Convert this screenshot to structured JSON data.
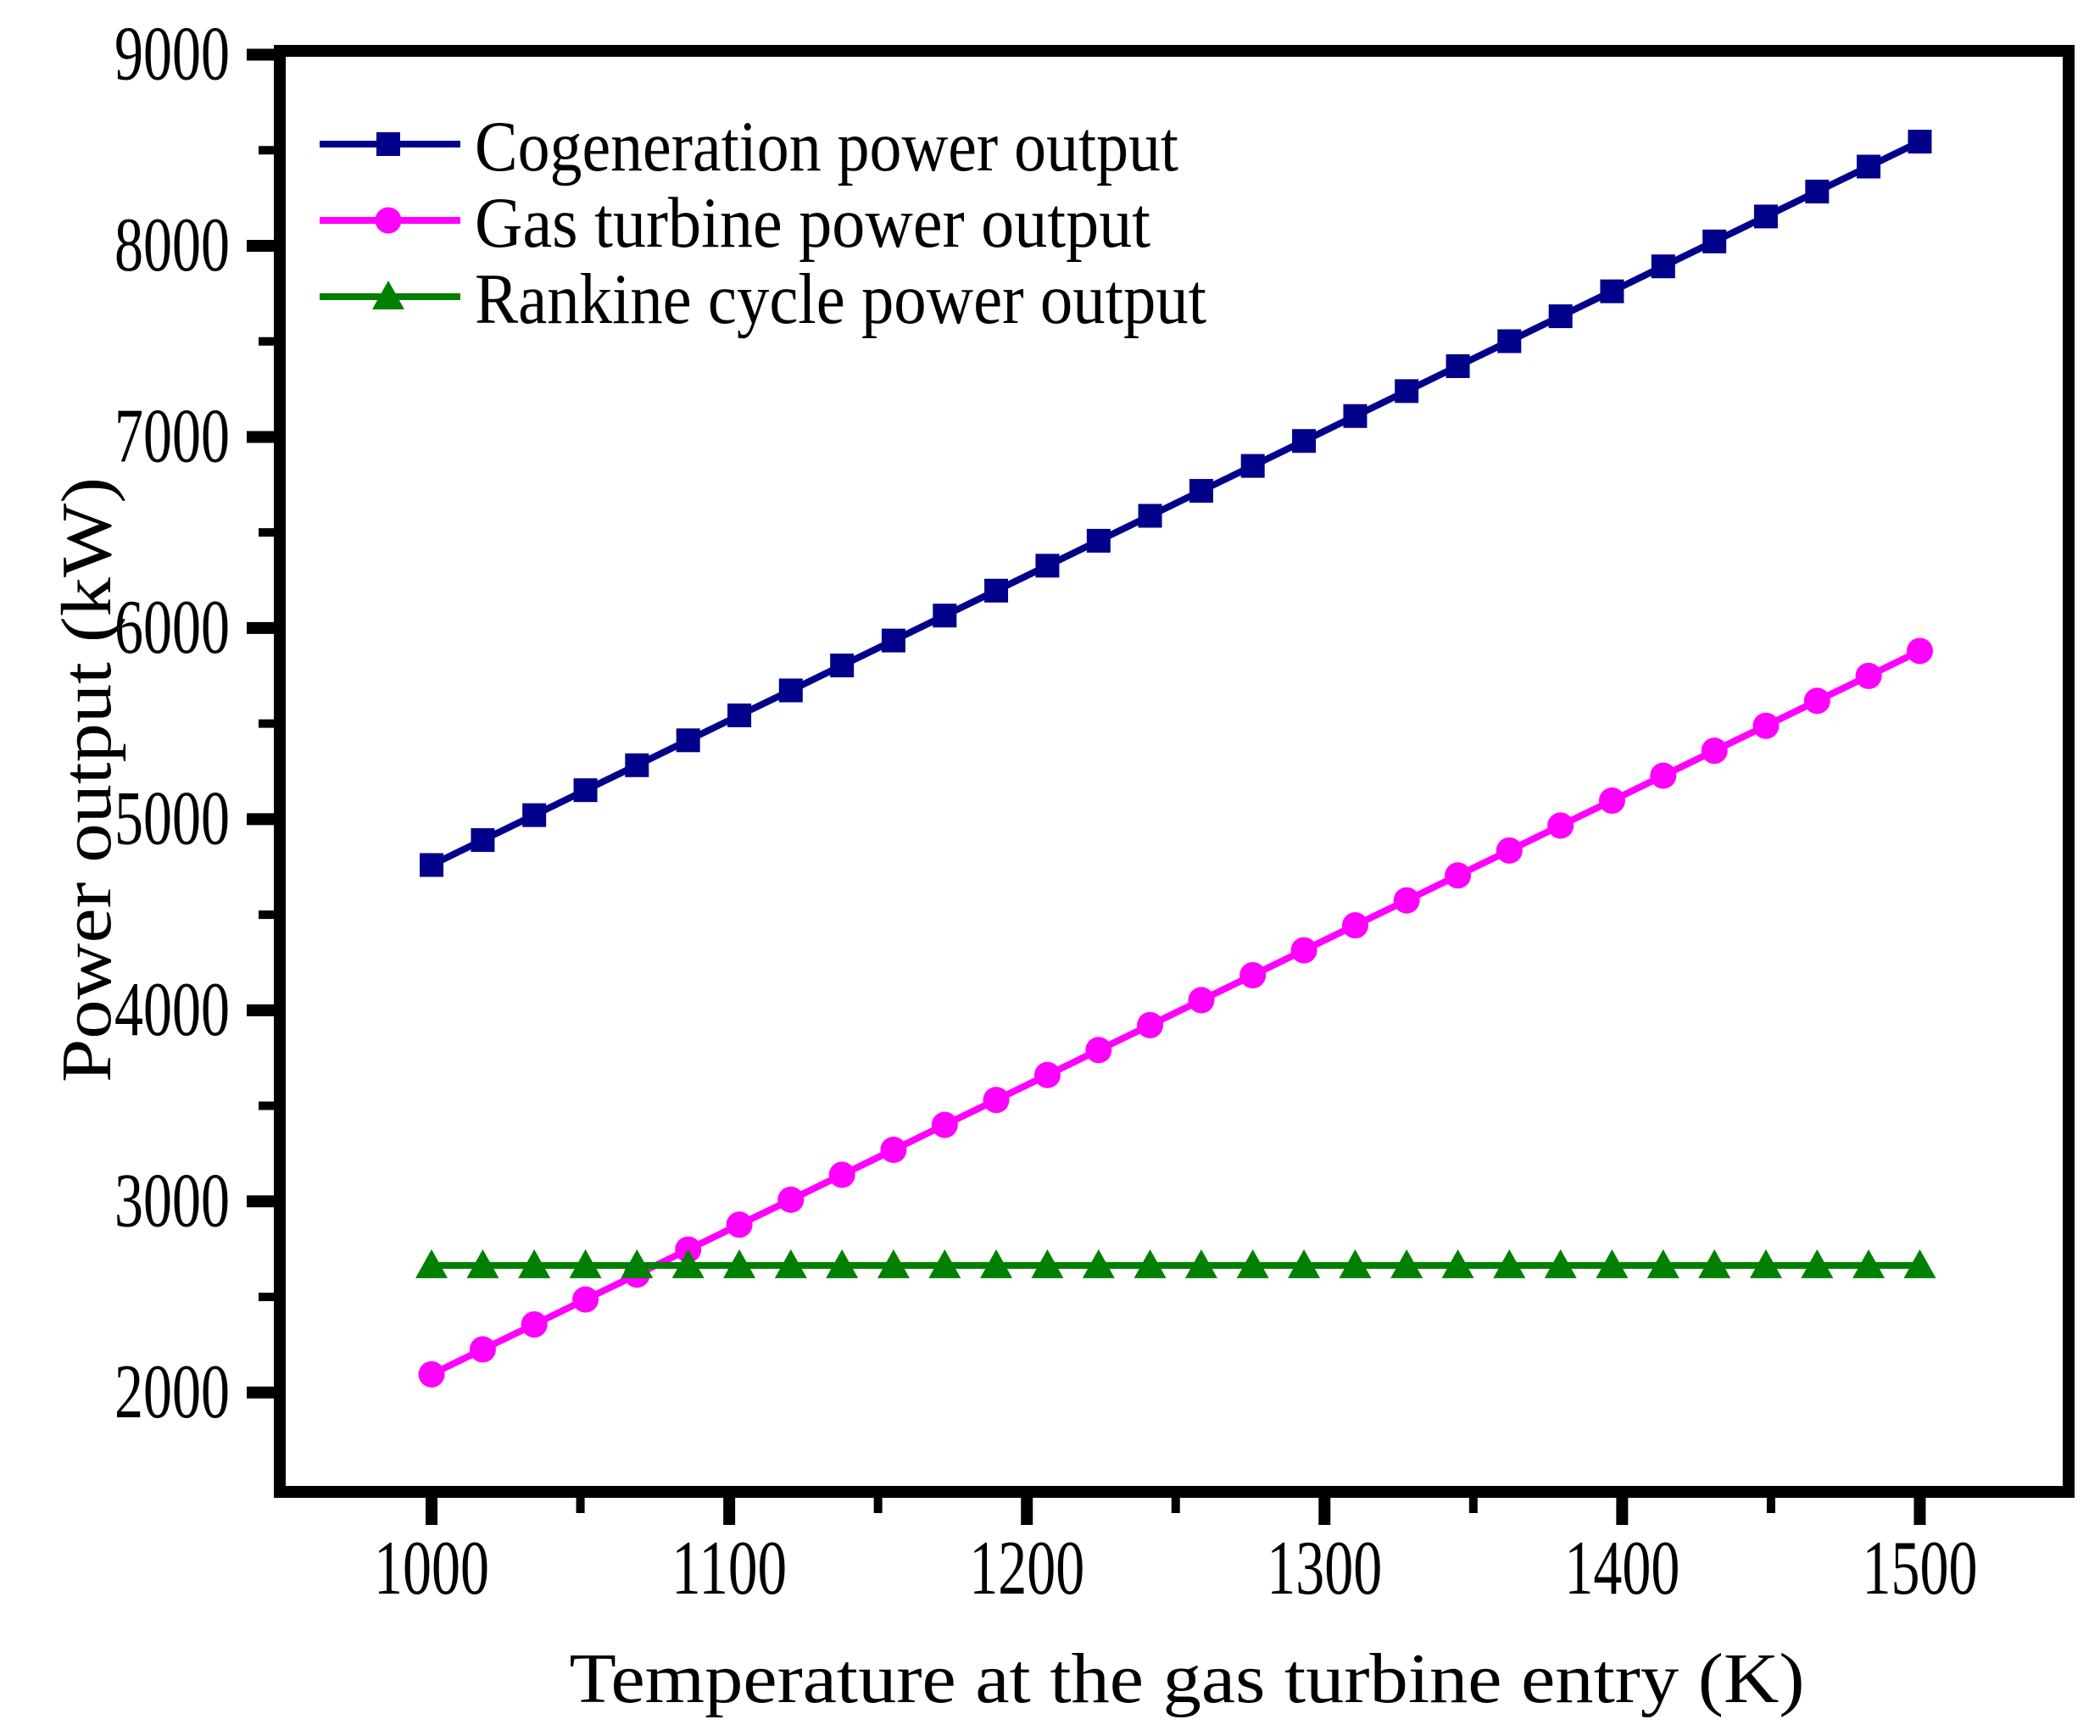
{
  "figure": {
    "background": "#ffffff",
    "axis_color": "#000000"
  },
  "chart_data": {
    "type": "line",
    "title": "",
    "xlabel": "Temperature at the gas turbine entry (K)",
    "ylabel": "Power output (kW)",
    "xlim": [
      949,
      1550
    ],
    "ylim": [
      1480,
      9020
    ],
    "x_major_ticks": [
      1000,
      1100,
      1200,
      1300,
      1400,
      1500
    ],
    "x_minor_ticks": [
      1050,
      1150,
      1250,
      1350,
      1450
    ],
    "y_major_ticks": [
      2000,
      3000,
      4000,
      5000,
      6000,
      7000,
      8000,
      9000
    ],
    "y_minor_ticks": [
      2500,
      3500,
      4500,
      5500,
      6500,
      7500,
      8500
    ],
    "grid": false,
    "legend_position": "top-left",
    "x": [
      1000,
      1017.2,
      1034.5,
      1051.7,
      1069,
      1086.2,
      1103.4,
      1120.7,
      1137.9,
      1155.2,
      1172.4,
      1189.7,
      1206.9,
      1224.1,
      1241.4,
      1258.6,
      1275.9,
      1293.1,
      1310.3,
      1327.6,
      1344.8,
      1362.1,
      1379.3,
      1396.6,
      1413.8,
      1431,
      1448.3,
      1465.5,
      1482.8,
      1500
    ],
    "series": [
      {
        "name": "Cogeneration power output",
        "color": "#00008B",
        "marker": "square",
        "values": [
          4760,
          4890.5,
          5021,
          5151.6,
          5282.1,
          5412.6,
          5543.1,
          5673.6,
          5804.1,
          5934.7,
          6065.2,
          6195.7,
          6326.2,
          6456.7,
          6587.2,
          6717.8,
          6848.3,
          6978.8,
          7109.3,
          7239.8,
          7370.3,
          7500.9,
          7631.4,
          7761.9,
          7892.4,
          8022.9,
          8153.4,
          8284,
          8414.5,
          8545
        ]
      },
      {
        "name": "Gas turbine power output",
        "color": "#FF00FF",
        "marker": "circle",
        "values": [
          2095,
          2225.5,
          2356,
          2486.6,
          2617.1,
          2747.6,
          2878.1,
          3008.6,
          3139.1,
          3269.7,
          3400.2,
          3530.7,
          3661.2,
          3791.7,
          3922.2,
          4052.8,
          4183.3,
          4313.8,
          4444.3,
          4574.8,
          4705.3,
          4835.9,
          4966.4,
          5096.9,
          5227.4,
          5357.9,
          5488.4,
          5619,
          5749.5,
          5880
        ]
      },
      {
        "name": "Rankine cycle power output",
        "color": "#008000",
        "marker": "triangle",
        "values": [
          2665,
          2665,
          2665,
          2665,
          2665,
          2665,
          2665,
          2665,
          2665,
          2665,
          2665,
          2665,
          2665,
          2665,
          2665,
          2665,
          2665,
          2665,
          2665,
          2665,
          2665,
          2665,
          2665,
          2665,
          2665,
          2665,
          2665,
          2665,
          2665,
          2665
        ]
      }
    ]
  }
}
